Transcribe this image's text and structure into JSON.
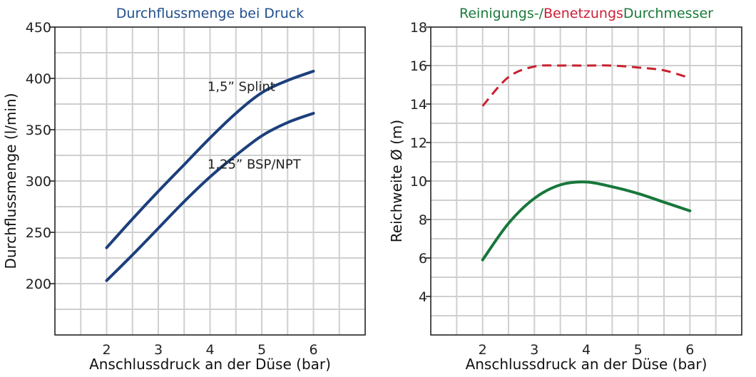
{
  "chart_data": [
    {
      "type": "line",
      "title": "Durchflussmenge bei Druck",
      "title_color": "#1f4e8c",
      "xlabel": "Anschlussdruck an der Düse (bar)",
      "ylabel": "Durchflussmenge (l/min)",
      "xlim": [
        1,
        7
      ],
      "ylim": [
        150,
        450
      ],
      "xticks": [
        2,
        3,
        4,
        5,
        6
      ],
      "yticks": [
        200,
        250,
        300,
        350,
        400,
        450
      ],
      "grid": true,
      "series": [
        {
          "name": "1,5” Splint",
          "color": "#1c3f7c",
          "dash": false,
          "x": [
            2,
            2.5,
            3,
            3.5,
            4,
            4.5,
            5,
            5.5,
            6
          ],
          "y": [
            235,
            263,
            290,
            316,
            342,
            366,
            386,
            398,
            407
          ]
        },
        {
          "name": "1,25” BSP/NPT",
          "color": "#1c3f7c",
          "dash": false,
          "x": [
            2,
            2.5,
            3,
            3.5,
            4,
            4.5,
            5,
            5.5,
            6
          ],
          "y": [
            203,
            228,
            254,
            280,
            304,
            325,
            344,
            357,
            366
          ]
        }
      ],
      "annotations": [
        {
          "text": "1,5” Splint",
          "x": 3.95,
          "y": 388
        },
        {
          "text": "1,25” BSP/NPT",
          "x": 3.95,
          "y": 312
        }
      ]
    },
    {
      "type": "line",
      "title_parts": [
        {
          "text": "Reinigungs-/",
          "color": "#1a7a3a"
        },
        {
          "text": "Benetzungs",
          "color": "#cc1f36"
        },
        {
          "text": "Durchmesser",
          "color": "#1a7a3a"
        }
      ],
      "xlabel": "Anschlussdruck an der Düse (bar)",
      "ylabel": "Reichweite Ø (m)",
      "xlim": [
        1,
        7
      ],
      "ylim": [
        2,
        18
      ],
      "xticks": [
        2,
        3,
        4,
        5,
        6
      ],
      "yticks": [
        4,
        6,
        8,
        10,
        12,
        14,
        16,
        18
      ],
      "grid": true,
      "series": [
        {
          "color": "#c8202f",
          "dash": true,
          "x": [
            2,
            2.5,
            3,
            3.5,
            4,
            4.5,
            5,
            5.5,
            6
          ],
          "y": [
            13.9,
            15.4,
            15.95,
            16.0,
            16.0,
            16.0,
            15.9,
            15.75,
            15.35
          ]
        },
        {
          "color": "#17773a",
          "dash": false,
          "x": [
            2,
            2.5,
            3,
            3.5,
            4,
            4.5,
            5,
            5.5,
            6
          ],
          "y": [
            5.9,
            7.8,
            9.1,
            9.8,
            9.95,
            9.7,
            9.35,
            8.9,
            8.45
          ]
        }
      ]
    }
  ]
}
